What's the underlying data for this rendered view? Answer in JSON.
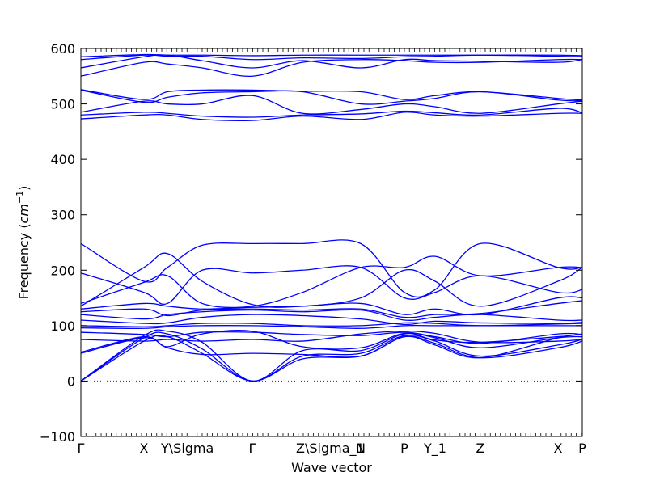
{
  "chart_data": {
    "type": "line",
    "title": "",
    "xlabel": "Wave vector",
    "ylabel": "Frequency ($cm^{-1}$)",
    "ylabel_parts": {
      "main": "Frequency (",
      "sym": "cm",
      "sup": "−1",
      "close": ")"
    },
    "ylim": [
      -100,
      600
    ],
    "yticks": [
      -100,
      0,
      100,
      200,
      300,
      400,
      500,
      600
    ],
    "grid": false,
    "legend": "none",
    "line_color": "#0000ff",
    "zero_line_style": "dotted",
    "kpoints": [
      {
        "label": "Γ",
        "x": 0.0
      },
      {
        "label": "X",
        "x": 0.78
      },
      {
        "label": "Y\\Sigma",
        "x": 1.07
      },
      {
        "label": "Γ",
        "x": 2.12
      },
      {
        "label": "Z\\Sigma_1",
        "x": 2.74
      },
      {
        "label": "N",
        "x": 3.46
      },
      {
        "label": "P",
        "x": 4.0
      },
      {
        "label": "Y_1",
        "x": 4.38
      },
      {
        "label": "Z",
        "x": 4.94
      },
      {
        "label": "X",
        "x": 5.9
      },
      {
        "label": "P",
        "x": 6.2
      }
    ],
    "xlim": [
      0,
      6.2
    ],
    "series": [
      {
        "values": [
          0,
          72,
          80,
          50,
          0,
          40,
          45,
          80,
          68,
          42,
          60,
          72
        ]
      },
      {
        "values": [
          0,
          78,
          85,
          58,
          0,
          45,
          50,
          82,
          72,
          45,
          65,
          75
        ]
      },
      {
        "values": [
          0,
          82,
          90,
          70,
          0,
          55,
          55,
          85,
          78,
          60,
          78,
          80
        ]
      },
      {
        "values": [
          50,
          78,
          60,
          48,
          50,
          48,
          45,
          80,
          65,
          42,
          78,
          84
        ]
      },
      {
        "values": [
          52,
          80,
          62,
          85,
          90,
          62,
          60,
          86,
          74,
          70,
          80,
          85
        ]
      },
      {
        "values": [
          75,
          72,
          75,
          72,
          75,
          72,
          85,
          90,
          86,
          70,
          72,
          75
        ]
      },
      {
        "values": [
          88,
          84,
          80,
          88,
          88,
          84,
          82,
          88,
          80,
          68,
          85,
          84
        ]
      },
      {
        "values": [
          96,
          95,
          98,
          100,
          100,
          98,
          95,
          100,
          100,
          100,
          100,
          100
        ]
      },
      {
        "values": [
          100,
          98,
          100,
          104,
          104,
          100,
          100,
          105,
          104,
          100,
          103,
          104
        ]
      },
      {
        "values": [
          110,
          104,
          105,
          115,
          120,
          118,
          112,
          102,
          108,
          105,
          104,
          106
        ]
      },
      {
        "values": [
          120,
          112,
          120,
          125,
          128,
          125,
          128,
          110,
          115,
          120,
          110,
          110
        ]
      },
      {
        "values": [
          125,
          130,
          118,
          128,
          130,
          128,
          130,
          115,
          120,
          122,
          140,
          145
        ]
      },
      {
        "values": [
          130,
          140,
          135,
          130,
          133,
          135,
          140,
          120,
          130,
          120,
          150,
          150
        ]
      },
      {
        "values": [
          135,
          205,
          230,
          180,
          138,
          135,
          150,
          200,
          180,
          135,
          180,
          205
        ]
      },
      {
        "values": [
          140,
          178,
          190,
          140,
          135,
          160,
          205,
          205,
          225,
          190,
          205,
          205
        ]
      },
      {
        "values": [
          195,
          160,
          140,
          200,
          195,
          200,
          205,
          150,
          160,
          190,
          160,
          165
        ]
      },
      {
        "values": [
          248,
          180,
          205,
          245,
          248,
          248,
          248,
          160,
          165,
          248,
          205,
          205
        ]
      },
      {
        "values": [
          473,
          480,
          480,
          472,
          470,
          478,
          472,
          485,
          480,
          478,
          483,
          483
        ]
      },
      {
        "values": [
          480,
          485,
          483,
          478,
          476,
          480,
          482,
          487,
          484,
          480,
          492,
          484
        ]
      },
      {
        "values": [
          485,
          505,
          500,
          500,
          515,
          483,
          490,
          500,
          495,
          483,
          500,
          505
        ]
      },
      {
        "values": [
          525,
          503,
          512,
          520,
          522,
          522,
          500,
          505,
          510,
          522,
          507,
          506
        ]
      },
      {
        "values": [
          526,
          508,
          522,
          525,
          525,
          523,
          522,
          508,
          515,
          522,
          510,
          507
        ]
      },
      {
        "values": [
          550,
          575,
          572,
          565,
          550,
          575,
          580,
          578,
          575,
          575,
          580,
          580
        ]
      },
      {
        "values": [
          565,
          585,
          588,
          578,
          565,
          578,
          565,
          580,
          578,
          577,
          575,
          580
        ]
      },
      {
        "values": [
          580,
          588,
          586,
          586,
          580,
          583,
          582,
          585,
          586,
          588,
          586,
          585
        ]
      },
      {
        "values": [
          585,
          589,
          588,
          588,
          587,
          588,
          588,
          588,
          588,
          588,
          588,
          587
        ]
      }
    ],
    "series_x": [
      0.0,
      0.78,
      1.07,
      1.5,
      2.12,
      2.74,
      3.46,
      4.0,
      4.38,
      4.94,
      5.9,
      6.2
    ]
  }
}
